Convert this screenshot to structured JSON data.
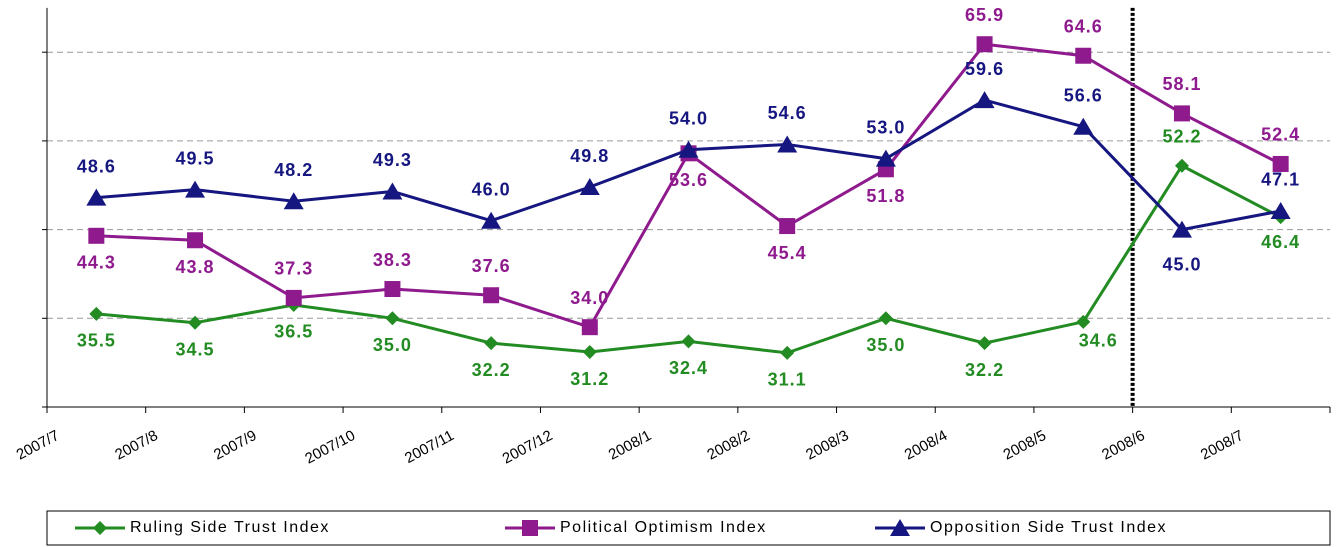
{
  "chart_data": {
    "type": "line",
    "categories": [
      "2007/7",
      "2007/8",
      "2007/9",
      "2007/10",
      "2007/11",
      "2007/12",
      "2008/1",
      "2008/2",
      "2008/3",
      "2008/4",
      "2008/5",
      "2008/6",
      "2008/7"
    ],
    "ylim": [
      25,
      70
    ],
    "yticks": [
      25,
      35,
      45,
      55,
      65
    ],
    "grid": true,
    "legend": "bottom",
    "series": [
      {
        "name": "Ruling Side Trust Index",
        "color": "#228b22",
        "marker": "diamond",
        "values": [
          35.5,
          34.5,
          36.5,
          35.0,
          32.2,
          31.2,
          32.4,
          31.1,
          35.0,
          32.2,
          34.6,
          52.2,
          46.4
        ],
        "value_labels": [
          "35.5",
          "34.5",
          "36.5",
          "35.0",
          "32.2",
          "31.2",
          "32.4",
          "31.1",
          "35.0",
          "32.2",
          "34.6",
          "52.2",
          "46.4"
        ]
      },
      {
        "name": "Political Optimism Index",
        "color": "#8e1a8e",
        "marker": "square",
        "values": [
          44.3,
          43.8,
          37.3,
          38.3,
          37.6,
          34.0,
          53.6,
          45.4,
          51.8,
          65.9,
          64.6,
          58.1,
          52.4
        ],
        "value_labels": [
          "44.3",
          "43.8",
          "37.3",
          "38.3",
          "37.6",
          "34.0",
          "53.6",
          "45.4",
          "51.8",
          "65.9",
          "64.6",
          "58.1",
          "52.4"
        ]
      },
      {
        "name": "Opposition Side Trust Index",
        "color": "#161680",
        "marker": "triangle",
        "values": [
          48.6,
          49.5,
          48.2,
          49.3,
          46.0,
          49.8,
          54.0,
          54.6,
          53.0,
          59.6,
          56.6,
          45.0,
          47.1
        ],
        "value_labels": [
          "48.6",
          "49.5",
          "48.2",
          "49.3",
          "46.0",
          "49.8",
          "54.0",
          "54.6",
          "53.0",
          "59.6",
          "56.6",
          "45.0",
          "47.1"
        ]
      }
    ]
  }
}
